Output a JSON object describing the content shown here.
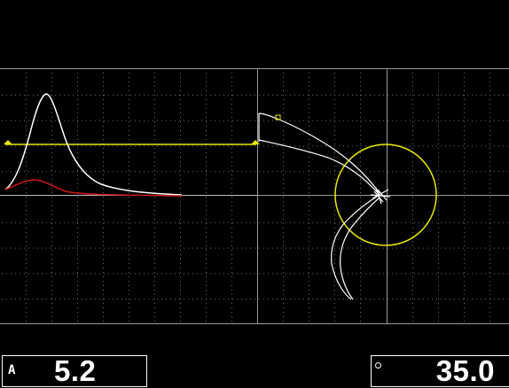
{
  "readouts": {
    "left": {
      "label": "A",
      "value": "5.2"
    },
    "right": {
      "label": "",
      "value": "35.0",
      "icon": "degree-icon"
    }
  },
  "colors": {
    "background": "#000000",
    "grid": "#7a7a7a",
    "trace_white": "#ffffff",
    "trace_red": "#d01818",
    "gate_yellow": "#e8e800"
  }
}
